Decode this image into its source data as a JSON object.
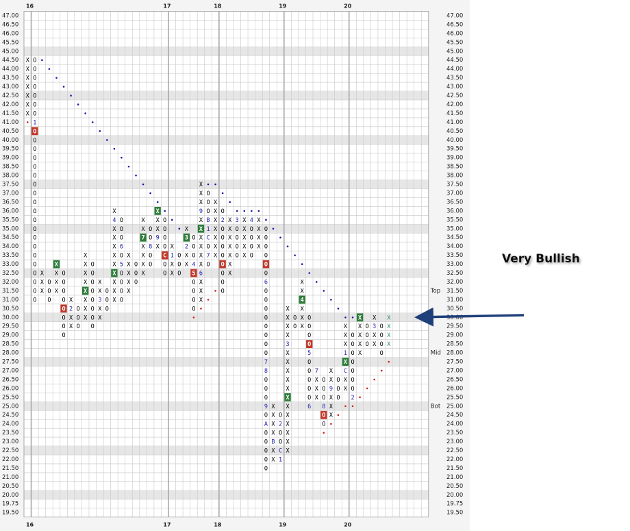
{
  "chart_data": {
    "type": "point-and-figure",
    "annotation": "Very Bullish",
    "yticks": [
      {
        "value": 47,
        "label": "47.00"
      },
      {
        "value": 46.5,
        "label": "46.50"
      },
      {
        "value": 46,
        "label": "46.00"
      },
      {
        "value": 45.5,
        "label": "45.50"
      },
      {
        "value": 45,
        "label": "45.00"
      },
      {
        "value": 44.5,
        "label": "44.50"
      },
      {
        "value": 44,
        "label": "44.00"
      },
      {
        "value": 43.5,
        "label": "43.50"
      },
      {
        "value": 43,
        "label": "43.00"
      },
      {
        "value": 42.5,
        "label": "42.50"
      },
      {
        "value": 42,
        "label": "42.00"
      },
      {
        "value": 41.5,
        "label": "41.50"
      },
      {
        "value": 41,
        "label": "41.00"
      },
      {
        "value": 40.5,
        "label": "40.50"
      },
      {
        "value": 40,
        "label": "40.00"
      },
      {
        "value": 39.5,
        "label": "39.50"
      },
      {
        "value": 39,
        "label": "39.00"
      },
      {
        "value": 38.5,
        "label": "38.50"
      },
      {
        "value": 38,
        "label": "38.00"
      },
      {
        "value": 37.5,
        "label": "37.50"
      },
      {
        "value": 37,
        "label": "37.00"
      },
      {
        "value": 36.5,
        "label": "36.50"
      },
      {
        "value": 36,
        "label": "36.00"
      },
      {
        "value": 35.5,
        "label": "35.50"
      },
      {
        "value": 35,
        "label": "35.00"
      },
      {
        "value": 34.5,
        "label": "34.50"
      },
      {
        "value": 34,
        "label": "34.00"
      },
      {
        "value": 33.5,
        "label": "33.50"
      },
      {
        "value": 33,
        "label": "33.00"
      },
      {
        "value": 32.5,
        "label": "32.50"
      },
      {
        "value": 32,
        "label": "32.00"
      },
      {
        "value": 31.5,
        "label": "31.50"
      },
      {
        "value": 31,
        "label": "31.00"
      },
      {
        "value": 30.5,
        "label": "30.50"
      },
      {
        "value": 30,
        "label": "30.00"
      },
      {
        "value": 29.5,
        "label": "29.50"
      },
      {
        "value": 29,
        "label": "29.00"
      },
      {
        "value": 28.5,
        "label": "28.50"
      },
      {
        "value": 28,
        "label": "28.00"
      },
      {
        "value": 27.5,
        "label": "27.50"
      },
      {
        "value": 27,
        "label": "27.00"
      },
      {
        "value": 26.5,
        "label": "26.50"
      },
      {
        "value": 26,
        "label": "26.00"
      },
      {
        "value": 25.5,
        "label": "25.50"
      },
      {
        "value": 25,
        "label": "25.00"
      },
      {
        "value": 24.5,
        "label": "24.50"
      },
      {
        "value": 24,
        "label": "24.00"
      },
      {
        "value": 23.5,
        "label": "23.50"
      },
      {
        "value": 23,
        "label": "23.00"
      },
      {
        "value": 22.5,
        "label": "22.50"
      },
      {
        "value": 22,
        "label": "22.00"
      },
      {
        "value": 21.5,
        "label": "21.50"
      },
      {
        "value": 21,
        "label": "21.00"
      },
      {
        "value": 20.5,
        "label": "20.50"
      },
      {
        "value": 20,
        "label": "20.00"
      },
      {
        "value": 19.75,
        "label": "19.75"
      },
      {
        "value": 19.5,
        "label": "19.50"
      }
    ],
    "year_marks": [
      {
        "label": "16",
        "col": 1
      },
      {
        "label": "17",
        "col": 20
      },
      {
        "label": "18",
        "col": 27
      },
      {
        "label": "19",
        "col": 36
      },
      {
        "label": "20",
        "col": 45
      }
    ],
    "levels": [
      {
        "label": "Top",
        "value": 31.5
      },
      {
        "label": "Mid",
        "value": 28
      },
      {
        "label": "Bot",
        "value": 25
      }
    ],
    "mark_color": "#000000",
    "count_color": "#2222b0",
    "green_box": "#2e7d3a",
    "red_box": "#c0392b",
    "columns": [
      {
        "top": 44.5,
        "marks": [
          "X",
          "X",
          "X",
          "X",
          "X",
          "X",
          "X"
        ]
      },
      {
        "top": 44.5,
        "marks": [
          "O",
          "O",
          "O",
          "O",
          "O",
          "O",
          "O",
          "1",
          {
            "text": "O",
            "box": "red"
          },
          "O",
          "O",
          "O",
          "O",
          "O",
          "O",
          "O",
          "O",
          "O",
          "O",
          "O",
          "O",
          "O",
          "O",
          "O",
          "O",
          "O",
          "O",
          "O"
        ]
      },
      {
        "top": 32.5,
        "marks": [
          "X",
          "X",
          "X"
        ]
      },
      {
        "top": 32,
        "marks": [
          "O",
          "O",
          "O"
        ]
      },
      {
        "top": 33,
        "marks": [
          {
            "text": "X",
            "box": "green"
          },
          "X",
          "X",
          "X"
        ]
      },
      {
        "top": 32.5,
        "marks": [
          "O",
          "O",
          "O",
          "O",
          {
            "text": "O",
            "box": "red"
          },
          "O",
          "O",
          "O"
        ]
      },
      {
        "top": 31,
        "marks": [
          "X",
          "2",
          "X",
          "X"
        ]
      },
      {
        "top": 30.5,
        "marks": [
          "O",
          "O",
          "O"
        ]
      },
      {
        "top": 33.5,
        "marks": [
          "X",
          "X",
          "X",
          "X",
          {
            "text": "X",
            "box": "green"
          },
          "X",
          "X",
          "X"
        ]
      },
      {
        "top": 33,
        "marks": [
          "O",
          "O",
          "O",
          "O",
          "O",
          "O",
          "O",
          "O"
        ]
      },
      {
        "top": 32,
        "marks": [
          "X",
          "X",
          "3",
          "X",
          "X"
        ]
      },
      {
        "top": 31.5,
        "marks": [
          "O",
          "O",
          "O"
        ]
      },
      {
        "top": 36,
        "marks": [
          "X",
          "4",
          "X",
          "X",
          "X",
          "X",
          "X",
          {
            "text": "X",
            "box": "green"
          },
          "X",
          "X",
          "X"
        ]
      },
      {
        "top": 35.5,
        "marks": [
          "O",
          "O",
          "O",
          "6",
          "O",
          "5",
          "O",
          "O",
          "O",
          "O"
        ]
      },
      {
        "top": 33.5,
        "marks": [
          "X",
          "X",
          "X",
          "X",
          "X"
        ]
      },
      {
        "top": 33,
        "marks": [
          "O",
          "O",
          "O"
        ]
      },
      {
        "top": 35.5,
        "marks": [
          "X",
          "X",
          {
            "text": "7",
            "box": "green"
          },
          "X",
          "X",
          "X",
          "X"
        ]
      },
      {
        "top": 35,
        "marks": [
          "O",
          "O",
          "8",
          "O",
          "O"
        ]
      },
      {
        "top": 36,
        "marks": [
          {
            "text": "X",
            "box": "green"
          },
          "X",
          "X",
          "9",
          "X"
        ]
      },
      {
        "top": 35.5,
        "marks": [
          "O",
          "O",
          "O",
          "O",
          {
            "text": "C",
            "box": "red"
          },
          "O",
          "O"
        ]
      },
      {
        "top": 34,
        "marks": [
          "X",
          "1",
          "X",
          "X"
        ]
      },
      {
        "top": 33.5,
        "marks": [
          "O",
          "O",
          "O"
        ]
      },
      {
        "top": 35,
        "marks": [
          "X",
          {
            "text": "3",
            "box": "green"
          },
          "2",
          "X",
          "X"
        ]
      },
      {
        "top": 34.5,
        "marks": [
          "O",
          "O",
          "O",
          "4",
          {
            "text": "5",
            "box": "red"
          },
          "O",
          "O",
          "O",
          "O"
        ]
      },
      {
        "top": 37.5,
        "marks": [
          "X",
          "X",
          "X",
          "9",
          "X",
          {
            "text": "X",
            "box": "green"
          },
          "X",
          "X",
          "X",
          "X",
          "6",
          "X",
          "X",
          "X"
        ]
      },
      {
        "top": 37,
        "marks": [
          "O",
          "O",
          "O",
          "B",
          "1",
          "C",
          "O",
          "7",
          "O"
        ]
      },
      {
        "top": 36.5,
        "marks": [
          "X",
          "X",
          "X",
          "X",
          "X",
          "X",
          "X"
        ]
      },
      {
        "top": 36,
        "marks": [
          "O",
          "2",
          "O",
          "O",
          "O",
          "O",
          {
            "text": "O",
            "box": "red"
          },
          "O",
          "O",
          "O"
        ]
      },
      {
        "top": 35.5,
        "marks": [
          "X",
          "X",
          "X",
          "X",
          "X",
          "X",
          "X"
        ]
      },
      {
        "top": 35.5,
        "marks": [
          "3",
          "O",
          "O",
          "O",
          "O"
        ]
      },
      {
        "top": 35.5,
        "marks": [
          "X",
          "X",
          "X",
          "X",
          "X"
        ]
      },
      {
        "top": 35.5,
        "marks": [
          "4",
          "O",
          "O",
          "O",
          "O"
        ]
      },
      {
        "top": 35.5,
        "marks": [
          "X",
          "X",
          "X",
          "X"
        ]
      },
      {
        "top": 35,
        "marks": [
          "O",
          "O",
          "O",
          "O",
          {
            "text": "O",
            "box": "red"
          },
          "O",
          "6",
          "O",
          "O",
          "O",
          "O",
          "O",
          "O",
          "O",
          "O",
          "7",
          "8",
          "O",
          "O",
          "O",
          "9",
          "O",
          "A",
          "O",
          "O",
          "O",
          "O",
          "O"
        ]
      },
      {
        "top": 25,
        "marks": [
          "X",
          "X",
          "X",
          "X",
          "B",
          "X",
          "X"
        ]
      },
      {
        "top": 24.5,
        "marks": [
          "O",
          "2",
          "O",
          "O",
          "C",
          "1"
        ]
      },
      {
        "top": 30.5,
        "marks": [
          "X",
          "X",
          "X",
          "X",
          "3",
          "X",
          "X",
          "X",
          "X",
          "X",
          {
            "text": "X",
            "box": "green"
          },
          "X",
          "X",
          "X",
          "X",
          "X",
          "X"
        ]
      },
      {
        "top": 30,
        "marks": [
          "O",
          "O"
        ]
      },
      {
        "top": 32,
        "marks": [
          "X",
          "X",
          {
            "text": "4",
            "box": "green"
          },
          "X",
          "X",
          "X"
        ]
      },
      {
        "top": 30,
        "marks": [
          "O",
          "O",
          "O",
          {
            "text": "O",
            "box": "red"
          },
          "5",
          "O",
          "O",
          "O",
          "O",
          "O",
          "6"
        ]
      },
      {
        "top": 27,
        "marks": [
          "7",
          "X",
          "X",
          "X"
        ]
      },
      {
        "top": 26.5,
        "marks": [
          "O",
          "O",
          "O",
          "8",
          {
            "text": "O",
            "box": "red"
          },
          "O"
        ]
      },
      {
        "top": 27,
        "marks": [
          "X",
          "X",
          "9",
          "X",
          "X",
          "X"
        ]
      },
      {
        "top": 26.5,
        "marks": [
          "O",
          "O",
          "O"
        ]
      },
      {
        "top": 29.5,
        "marks": [
          "X",
          "X",
          "X",
          "1",
          {
            "text": "X",
            "box": "green"
          },
          "C",
          "X",
          "X"
        ]
      },
      {
        "top": 29,
        "marks": [
          "O",
          "O",
          "O",
          "O",
          "O",
          "O",
          "O",
          "2"
        ]
      },
      {
        "top": 30,
        "marks": [
          {
            "text": "X",
            "box": "green"
          },
          "X",
          "X",
          "X",
          "X"
        ]
      },
      {
        "top": 29.5,
        "marks": [
          "O",
          "O",
          "O"
        ]
      },
      {
        "top": 30,
        "marks": [
          "X",
          "3",
          "X",
          "X"
        ]
      },
      {
        "top": 29.5,
        "marks": [
          "O",
          "O",
          "O",
          "O"
        ]
      },
      {
        "top": 30,
        "marks": [
          "X",
          "X",
          "X",
          "X"
        ],
        "color": "#2e8b57"
      }
    ],
    "trend_lines": [
      {
        "color": "#1a1aa6",
        "points": [
          {
            "col": 2,
            "price": 44.5
          },
          {
            "col": 3,
            "price": 44
          },
          {
            "col": 4,
            "price": 43.5
          },
          {
            "col": 5,
            "price": 43
          },
          {
            "col": 6,
            "price": 42.5
          },
          {
            "col": 7,
            "price": 42
          },
          {
            "col": 8,
            "price": 41.5
          },
          {
            "col": 9,
            "price": 41
          },
          {
            "col": 10,
            "price": 40.5
          },
          {
            "col": 11,
            "price": 40
          },
          {
            "col": 12,
            "price": 39.5
          },
          {
            "col": 13,
            "price": 39
          },
          {
            "col": 14,
            "price": 38.5
          },
          {
            "col": 15,
            "price": 38
          },
          {
            "col": 16,
            "price": 37.5
          },
          {
            "col": 17,
            "price": 37
          },
          {
            "col": 18,
            "price": 36.5
          },
          {
            "col": 19,
            "price": 36
          }
        ]
      },
      {
        "color": "#1a1aa6",
        "points": [
          {
            "col": 20,
            "price": 35.5
          },
          {
            "col": 21,
            "price": 35
          }
        ]
      },
      {
        "color": "#1a1aa6",
        "points": [
          {
            "col": 25,
            "price": 37.5
          },
          {
            "col": 26,
            "price": 37.5
          },
          {
            "col": 27,
            "price": 37
          },
          {
            "col": 28,
            "price": 36.5
          },
          {
            "col": 29,
            "price": 36
          },
          {
            "col": 30,
            "price": 36
          },
          {
            "col": 31,
            "price": 36
          },
          {
            "col": 32,
            "price": 36
          },
          {
            "col": 33,
            "price": 35.5
          },
          {
            "col": 34,
            "price": 35
          },
          {
            "col": 35,
            "price": 34.5
          },
          {
            "col": 36,
            "price": 34
          },
          {
            "col": 37,
            "price": 33.5
          },
          {
            "col": 38,
            "price": 33
          },
          {
            "col": 39,
            "price": 32.5
          },
          {
            "col": 40,
            "price": 32
          },
          {
            "col": 41,
            "price": 31.5
          },
          {
            "col": 42,
            "price": 31
          },
          {
            "col": 43,
            "price": 30.5
          },
          {
            "col": 44,
            "price": 30
          },
          {
            "col": 45,
            "price": 30
          }
        ]
      },
      {
        "color": "#d02020",
        "points": [
          {
            "col": 0,
            "price": 41
          }
        ]
      },
      {
        "color": "#d02020",
        "points": [
          {
            "col": 23,
            "price": 30
          },
          {
            "col": 24,
            "price": 30.5
          },
          {
            "col": 25,
            "price": 31
          },
          {
            "col": 26,
            "price": 31.5
          }
        ]
      },
      {
        "color": "#d02020",
        "points": [
          {
            "col": 41,
            "price": 23.5
          },
          {
            "col": 42,
            "price": 24
          },
          {
            "col": 43,
            "price": 24.5
          },
          {
            "col": 44,
            "price": 25
          },
          {
            "col": 45,
            "price": 25
          },
          {
            "col": 46,
            "price": 25.5
          },
          {
            "col": 47,
            "price": 26
          },
          {
            "col": 48,
            "price": 26.5
          },
          {
            "col": 49,
            "price": 27
          },
          {
            "col": 50,
            "price": 27.5
          }
        ]
      }
    ]
  }
}
